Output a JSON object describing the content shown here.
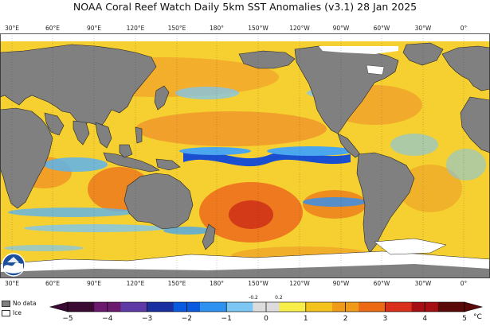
{
  "title": "NOAA Coral Reef Watch Daily 5km SST Anomalies  (v3.1)   28 Jan 2025",
  "map": {
    "longitude_ticks": [
      "30°E",
      "60°E",
      "90°E",
      "120°E",
      "150°E",
      "180°",
      "150°W",
      "120°W",
      "90°W",
      "60°W",
      "30°W",
      "0°"
    ],
    "land_color": "#808080",
    "ice_color": "#ffffff"
  },
  "legend": {
    "no_data": "No data",
    "ice": "Ice"
  },
  "colorbar": {
    "unit": "°C",
    "tick_labels": [
      "−5",
      "−4",
      "−3",
      "−2",
      "−1",
      "0",
      "1",
      "2",
      "3",
      "4",
      "5"
    ],
    "minor_labels": [
      "-0.2",
      "0.2"
    ],
    "colors": [
      "#3a0a32",
      "#6b1a6e",
      "#5d3aa6",
      "#1a2fa0",
      "#0a5ae0",
      "#2f92f0",
      "#7cc6f4",
      "#dcdcdc",
      "#f7ee4a",
      "#f4c21c",
      "#f09a1a",
      "#ec6a14",
      "#d8301a",
      "#a50e12",
      "#5a0808"
    ]
  },
  "logo": {
    "name": "NOAA logo"
  }
}
